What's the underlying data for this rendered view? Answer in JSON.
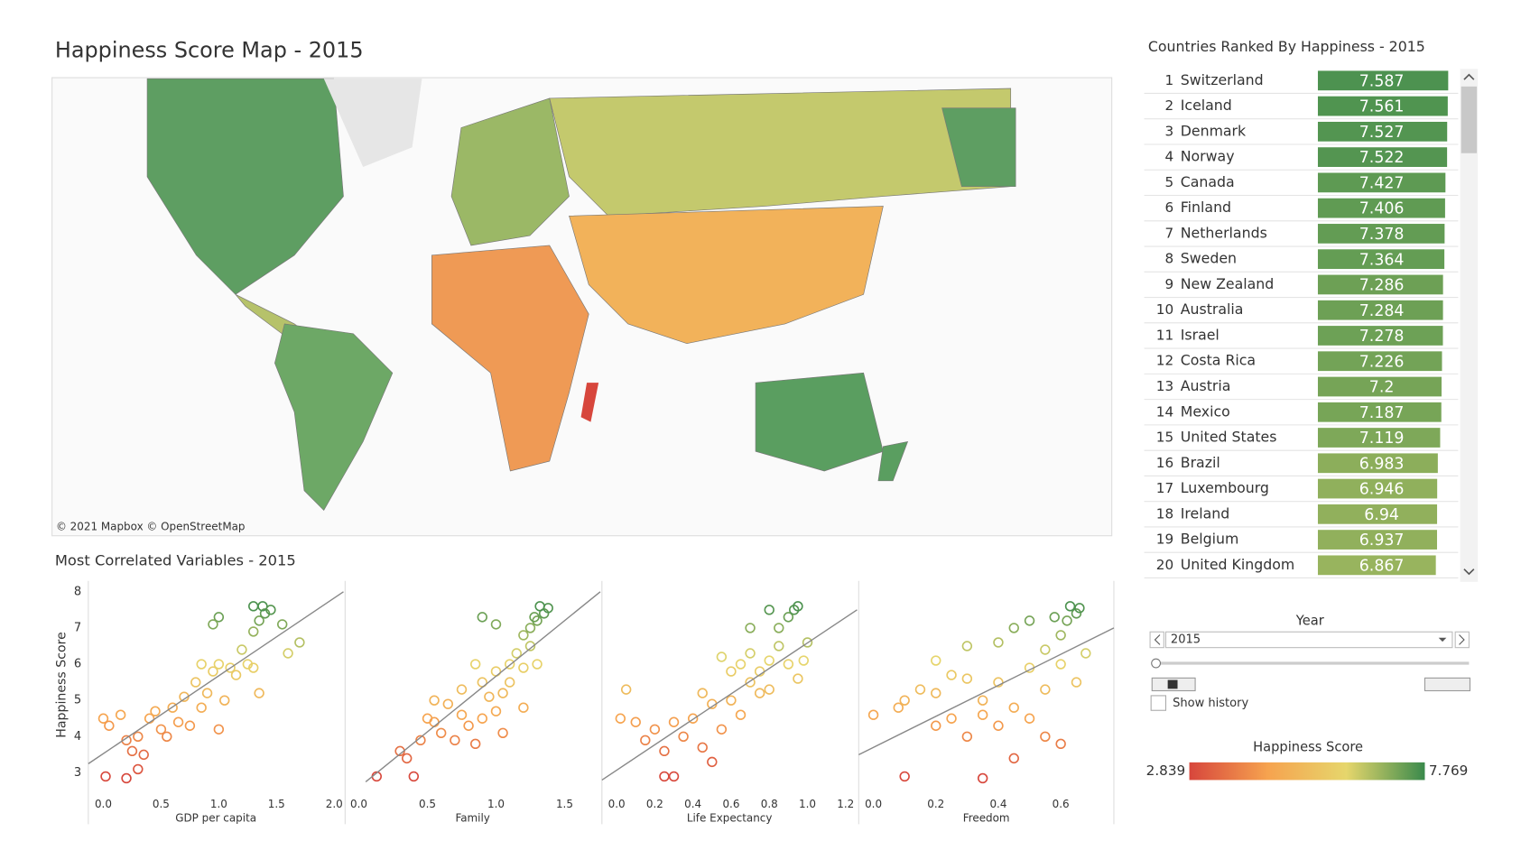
{
  "title": "Happiness Score Map - 2015",
  "map_credit": "© 2021 Mapbox © OpenStreetMap",
  "section_title": "Most Correlated Variables - 2015",
  "controls": {
    "year_label": "Year",
    "year_value": "2015",
    "show_history": "Show history"
  },
  "color_legend": {
    "title": "Happiness Score",
    "min": 2.839,
    "max": 7.769,
    "colors": [
      "#d7463c",
      "#f6a34f",
      "#e6d66c",
      "#3a8a4c"
    ]
  },
  "chart_data": [
    {
      "type": "bar",
      "orientation": "horizontal",
      "title": "Countries Ranked By Happiness - 2015",
      "ranks": [
        1,
        2,
        3,
        4,
        5,
        6,
        7,
        8,
        9,
        10,
        11,
        12,
        13,
        14,
        15,
        16,
        17,
        18,
        19,
        20
      ],
      "categories": [
        "Switzerland",
        "Iceland",
        "Denmark",
        "Norway",
        "Canada",
        "Finland",
        "Netherlands",
        "Sweden",
        "New Zealand",
        "Australia",
        "Israel",
        "Costa Rica",
        "Austria",
        "Mexico",
        "United States",
        "Brazil",
        "Luxembourg",
        "Ireland",
        "Belgium",
        "United Kingdom"
      ],
      "values": [
        7.587,
        7.561,
        7.527,
        7.522,
        7.427,
        7.406,
        7.378,
        7.364,
        7.286,
        7.284,
        7.278,
        7.226,
        7.2,
        7.187,
        7.119,
        6.983,
        6.946,
        6.94,
        6.937,
        6.867
      ],
      "xlim": [
        0,
        7.769
      ]
    },
    {
      "type": "scatter",
      "x_label": "GDP per capita",
      "y_label": "Happiness Score",
      "xlim": [
        -0.13,
        2.08
      ],
      "ylim": [
        2.53,
        8.3
      ],
      "xticks": [
        {
          "value": 0,
          "label": "0.0"
        },
        0.5,
        {
          "value": 1,
          "label": "1.0"
        },
        1.5,
        {
          "value": 2,
          "label": "2.0"
        }
      ],
      "yticks": [
        3,
        4,
        5,
        6,
        7,
        8
      ],
      "trend_line": {
        "x": [
          -0.13,
          2.08
        ],
        "y": [
          3.25,
          8.0
        ]
      },
      "x": [
        0.02,
        0.2,
        0.0,
        0.05,
        0.15,
        0.2,
        0.25,
        0.3,
        0.35,
        0.4,
        0.45,
        0.5,
        0.55,
        0.6,
        0.7,
        0.75,
        0.8,
        0.85,
        0.9,
        0.95,
        1.0,
        1.05,
        1.1,
        1.0,
        0.85,
        1.15,
        1.2,
        1.25,
        1.3,
        1.35,
        1.4,
        1.38,
        1.3,
        1.45,
        1.55,
        1.7,
        1.6,
        1.0,
        0.95,
        1.3,
        1.35,
        0.65,
        0.3
      ],
      "y": [
        2.9,
        2.85,
        4.5,
        4.3,
        4.6,
        3.9,
        3.6,
        4.0,
        3.5,
        4.5,
        4.7,
        4.2,
        4.0,
        4.8,
        5.1,
        4.3,
        5.5,
        4.8,
        5.2,
        5.8,
        4.2,
        5.0,
        5.9,
        6.0,
        6.0,
        5.7,
        6.4,
        6.0,
        6.9,
        7.2,
        7.4,
        7.6,
        7.6,
        7.5,
        7.1,
        6.6,
        6.3,
        7.3,
        7.1,
        5.9,
        5.2,
        4.4,
        3.1
      ]
    },
    {
      "type": "scatter",
      "x_label": "Family",
      "xlim": [
        -0.1,
        1.76
      ],
      "ylim": [
        2.53,
        8.3
      ],
      "xticks": [
        {
          "value": 0,
          "label": "0.0"
        },
        0.5,
        {
          "value": 1,
          "label": "1.0"
        },
        1.5
      ],
      "trend_line": {
        "x": [
          0.05,
          1.76
        ],
        "y": [
          2.75,
          8.0
        ]
      },
      "x": [
        0.13,
        0.4,
        0.3,
        0.45,
        0.55,
        0.6,
        0.7,
        0.75,
        0.8,
        0.85,
        0.9,
        0.95,
        1.0,
        0.65,
        0.55,
        0.75,
        0.9,
        1.0,
        1.05,
        1.1,
        1.15,
        1.2,
        1.25,
        1.3,
        1.2,
        1.25,
        1.3,
        1.35,
        1.38,
        1.32,
        1.28,
        0.9,
        1.0,
        1.1,
        1.2,
        0.5,
        0.85,
        1.05,
        0.35
      ],
      "y": [
        2.9,
        2.9,
        3.6,
        3.9,
        4.4,
        4.1,
        3.9,
        4.6,
        4.3,
        3.8,
        4.5,
        5.1,
        4.7,
        4.9,
        5.0,
        5.3,
        5.5,
        5.8,
        5.2,
        6.0,
        6.3,
        5.9,
        6.5,
        6.0,
        6.8,
        7.0,
        7.2,
        7.4,
        7.55,
        7.6,
        7.3,
        7.3,
        7.1,
        5.5,
        4.8,
        4.5,
        6.0,
        4.1,
        3.4
      ]
    },
    {
      "type": "scatter",
      "x_label": "Life Expectancy",
      "xlim": [
        -0.077,
        1.26
      ],
      "ylim": [
        2.53,
        8.3
      ],
      "xticks": [
        {
          "value": 0,
          "label": "0.0"
        },
        0.2,
        0.4,
        0.6,
        0.8,
        {
          "value": 1,
          "label": "1.0"
        },
        1.2
      ],
      "trend_line": {
        "x": [
          -0.077,
          1.26
        ],
        "y": [
          2.8,
          7.5
        ]
      },
      "x": [
        0.02,
        0.1,
        0.05,
        0.15,
        0.25,
        0.2,
        0.3,
        0.35,
        0.4,
        0.45,
        0.5,
        0.55,
        0.6,
        0.65,
        0.7,
        0.75,
        0.8,
        0.65,
        0.7,
        0.75,
        0.8,
        0.85,
        0.9,
        0.85,
        0.9,
        0.93,
        0.95,
        0.8,
        0.7,
        1.0,
        0.98,
        0.95,
        0.5,
        0.3,
        0.25,
        0.55,
        0.45,
        0.6
      ],
      "y": [
        4.5,
        4.4,
        5.3,
        3.9,
        3.6,
        4.2,
        4.4,
        4.0,
        4.5,
        3.7,
        4.9,
        4.2,
        5.0,
        4.6,
        5.5,
        5.2,
        5.3,
        6.0,
        6.3,
        5.8,
        6.1,
        6.5,
        6.0,
        7.0,
        7.3,
        7.5,
        7.6,
        7.5,
        7.0,
        6.6,
        6.1,
        5.6,
        3.3,
        2.9,
        2.9,
        6.2,
        5.2,
        5.8
      ]
    },
    {
      "type": "scatter",
      "x_label": "Freedom",
      "xlim": [
        -0.047,
        0.77
      ],
      "ylim": [
        2.53,
        8.3
      ],
      "xticks": [
        {
          "value": 0,
          "label": "0.0"
        },
        0.2,
        0.4,
        0.6
      ],
      "trend_line": {
        "x": [
          -0.047,
          0.77
        ],
        "y": [
          3.5,
          7.0
        ]
      },
      "x": [
        0.0,
        0.1,
        0.35,
        0.08,
        0.1,
        0.2,
        0.25,
        0.2,
        0.3,
        0.35,
        0.3,
        0.35,
        0.4,
        0.4,
        0.45,
        0.45,
        0.5,
        0.5,
        0.55,
        0.55,
        0.6,
        0.6,
        0.62,
        0.65,
        0.66,
        0.63,
        0.58,
        0.5,
        0.45,
        0.4,
        0.3,
        0.2,
        0.25,
        0.65,
        0.68,
        0.6,
        0.55,
        0.15
      ],
      "y": [
        4.6,
        2.9,
        2.85,
        4.8,
        5.0,
        4.3,
        4.5,
        5.2,
        4.0,
        4.6,
        5.6,
        5.0,
        4.3,
        5.5,
        4.8,
        3.4,
        4.5,
        5.9,
        5.3,
        6.4,
        6.0,
        6.8,
        7.2,
        7.4,
        7.55,
        7.6,
        7.3,
        7.2,
        7.0,
        6.6,
        6.5,
        6.1,
        5.7,
        5.5,
        6.3,
        3.8,
        4.0,
        5.3
      ]
    }
  ]
}
